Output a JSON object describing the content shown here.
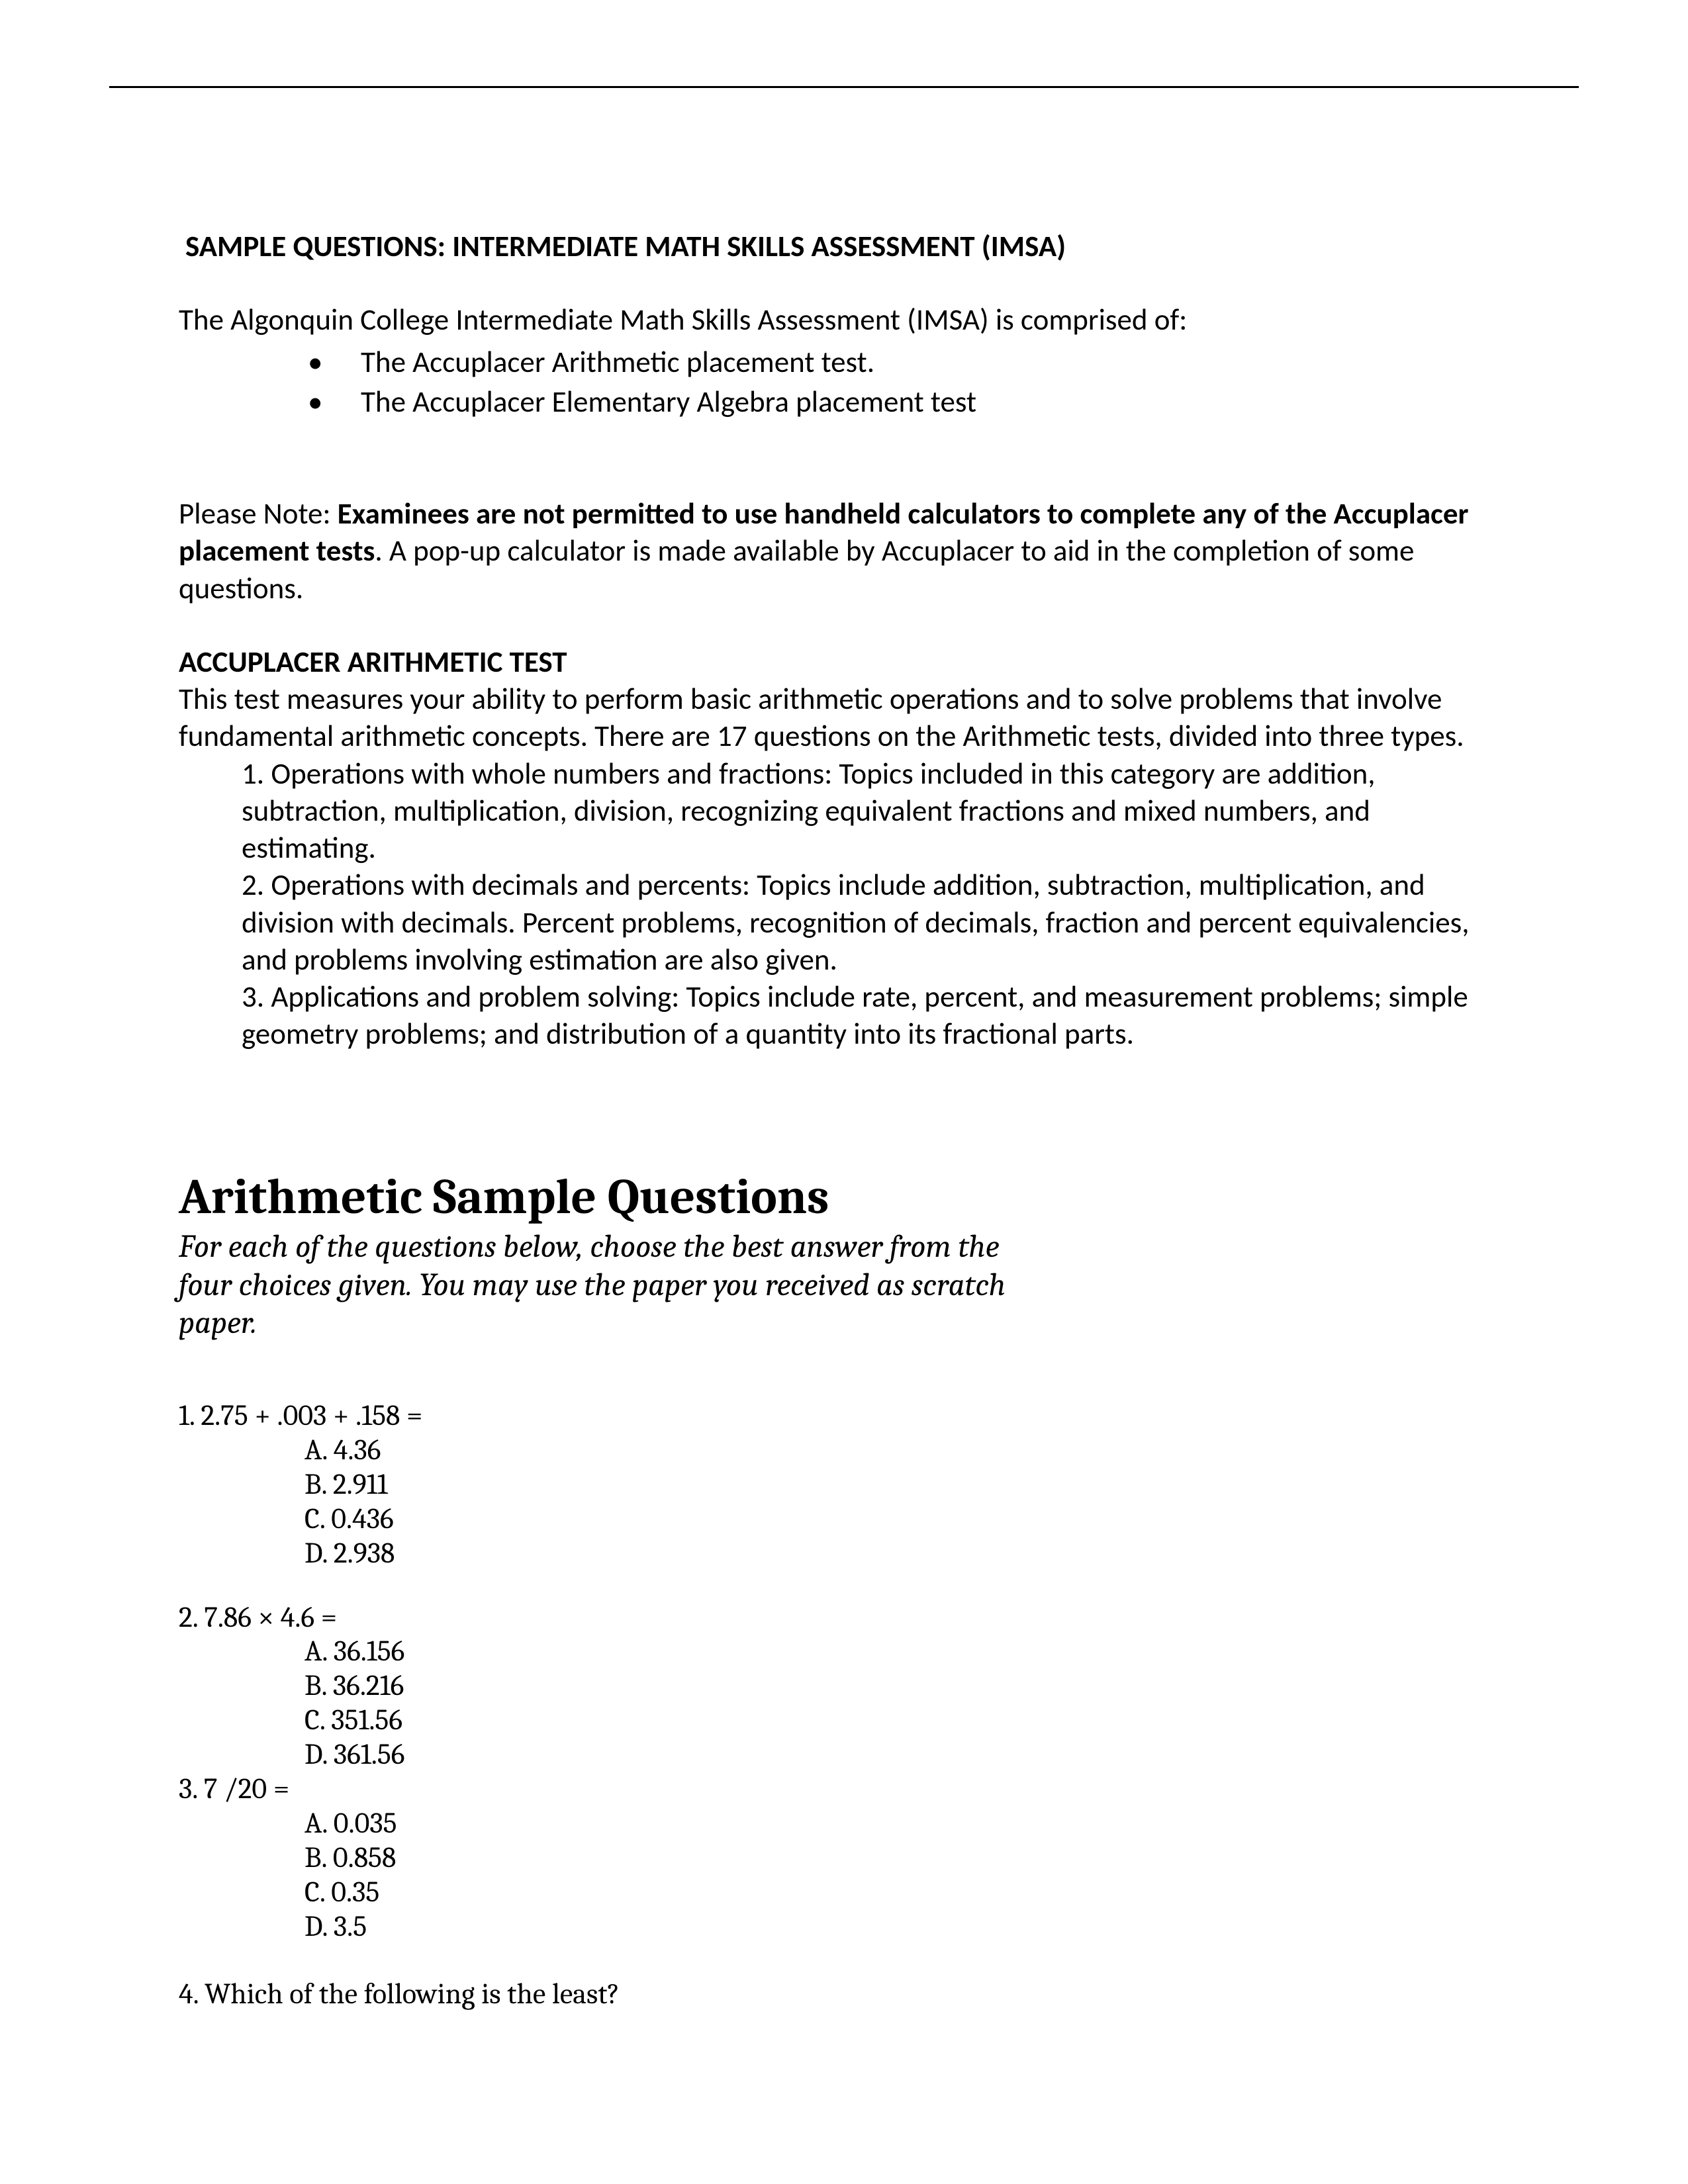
{
  "title": "SAMPLE QUESTIONS: INTERMEDIATE MATH SKILLS ASSESSMENT (IMSA)",
  "intro": "The Algonquin College Intermediate Math Skills Assessment (IMSA) is comprised of:",
  "bullets": [
    "The Accuplacer Arithmetic placement test.",
    "The Accuplacer Elementary Algebra placement test"
  ],
  "note_prefix": "Please Note: ",
  "note_bold": "Examinees are not permitted to use handheld calculators to complete any of the Accuplacer placement tests",
  "note_rest": ". A pop-up calculator is made available by Accuplacer to aid in the completion of some questions.",
  "sec_heading": "ACCUPLACER ARITHMETIC TEST",
  "sec_body": "This test measures your ability to perform basic arithmetic operations and to solve problems that involve fundamental arithmetic concepts. There are 17 questions on the Arithmetic tests, divided into three types.",
  "topics": [
    "1. Operations with whole numbers and fractions: Topics included in this category are addition, subtraction, multiplication, division, recognizing equivalent fractions and mixed numbers, and estimating.",
    "2. Operations with decimals and percents: Topics include addition, subtraction, multiplication, and division with decimals. Percent problems, recognition of decimals, fraction and percent equivalencies, and problems involving estimation are also given.",
    "3. Applications and problem solving: Topics include rate, percent, and measurement problems; simple geometry problems; and distribution of a quantity into its fractional parts."
  ],
  "sample_heading": "Arithmetic Sample Questions",
  "instructions": "For each of the questions below, choose the best answer from the four choices given. You may use the paper you received as scratch paper.",
  "q": [
    {
      "stem": "1.  2.75 + .003 + .158 =",
      "choices": [
        "A. 4.36",
        "B. 2.911",
        "C. 0.436",
        "D. 2.938"
      ]
    },
    {
      "stem": "2.  7.86 × 4.6 =",
      "choices": [
        "A. 36.156",
        "B. 36.216",
        "C. 351.56",
        "D. 361.56"
      ]
    },
    {
      "stem": "3.  7 /20 =",
      "choices": [
        "A. 0.035",
        "B. 0.858",
        "C. 0.35",
        "D. 3.5"
      ]
    },
    {
      "stem": "4.  Which of the following is the least?",
      "choices": []
    }
  ]
}
